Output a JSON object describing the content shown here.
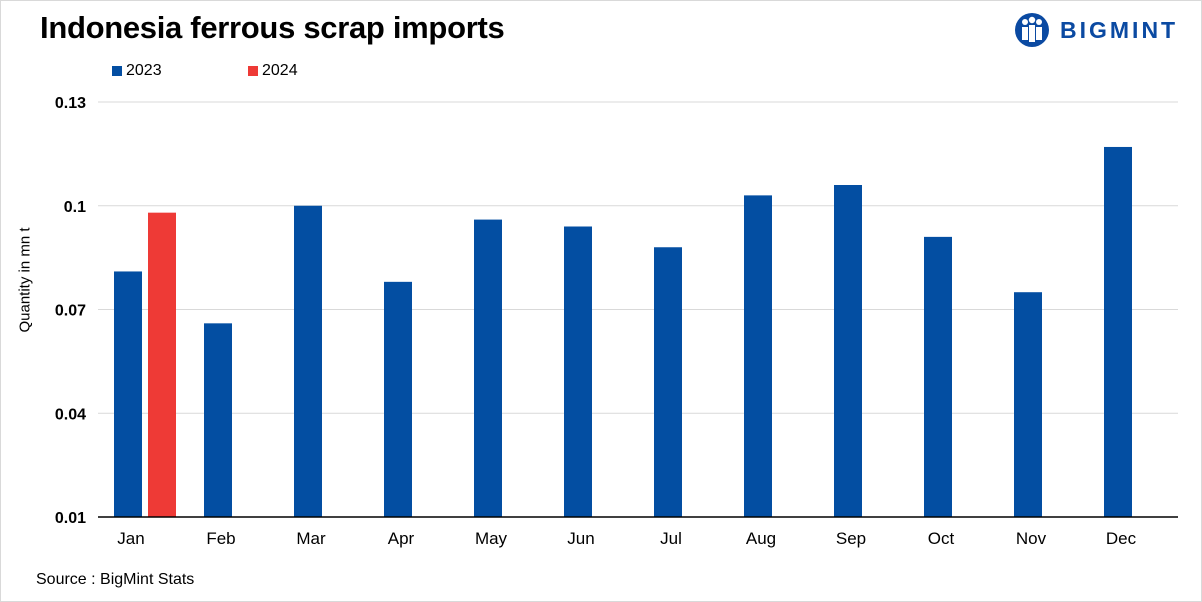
{
  "title": "Indonesia ferrous scrap imports",
  "logo": {
    "text": "BIGMINT",
    "icon": "bigmint-people-logo-icon"
  },
  "source": "Source : BigMint Stats",
  "colors": {
    "s2023": "#034ea2",
    "s2024": "#ee3a36",
    "grid": "#d9d9d9",
    "axis": "#000000",
    "brand": "#0b4aa2"
  },
  "chart_data": {
    "type": "bar",
    "title": "Indonesia ferrous scrap imports",
    "xlabel": "",
    "ylabel": "Quantity in mn t",
    "ylim": [
      0.01,
      0.13
    ],
    "yticks": [
      0.01,
      0.04,
      0.07,
      0.1,
      0.13
    ],
    "ytick_labels": [
      "0.01",
      "0.04",
      "0.07",
      "0.1",
      "0.13"
    ],
    "grid": true,
    "legend": "top-left",
    "categories": [
      "Jan",
      "Feb",
      "Mar",
      "Apr",
      "May",
      "Jun",
      "Jul",
      "Aug",
      "Sep",
      "Oct",
      "Nov",
      "Dec"
    ],
    "series": [
      {
        "name": "2023",
        "values": [
          0.081,
          0.066,
          0.1,
          0.078,
          0.096,
          0.094,
          0.088,
          0.103,
          0.106,
          0.091,
          0.075,
          0.117
        ]
      },
      {
        "name": "2024",
        "values": [
          0.098,
          null,
          null,
          null,
          null,
          null,
          null,
          null,
          null,
          null,
          null,
          null
        ]
      }
    ]
  }
}
